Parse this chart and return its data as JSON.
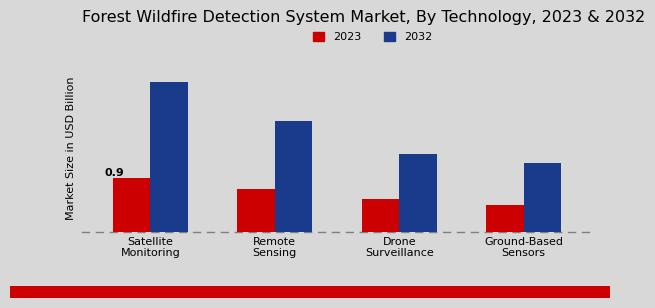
{
  "title": "Forest Wildfire Detection System Market, By Technology, 2023 & 2032",
  "ylabel": "Market Size in USD Billion",
  "categories": [
    "Satellite\nMonitoring",
    "Remote\nSensing",
    "Drone\nSurveillance",
    "Ground-Based\nSensors"
  ],
  "values_2023": [
    0.9,
    0.72,
    0.55,
    0.45
  ],
  "values_2032": [
    2.5,
    1.85,
    1.3,
    1.15
  ],
  "color_2023": "#cc0000",
  "color_2032": "#1a3a8c",
  "background_color": "#d8d8d8",
  "annotation_value": "0.9",
  "bar_width": 0.3,
  "legend_labels": [
    "2023",
    "2032"
  ],
  "title_fontsize": 11.5,
  "ylabel_fontsize": 8,
  "tick_fontsize": 8,
  "legend_fontsize": 8
}
